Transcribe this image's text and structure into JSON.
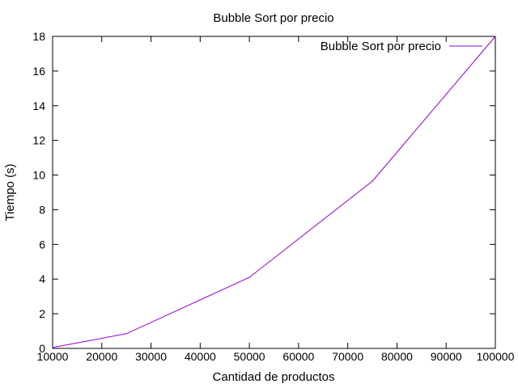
{
  "chart_data": {
    "type": "line",
    "title": "Bubble Sort por precio",
    "xlabel": "Cantidad de productos",
    "ylabel": "Tiempo (s)",
    "xlim": [
      10000,
      100000
    ],
    "ylim": [
      0,
      18
    ],
    "xticks": [
      "10000",
      "20000",
      "30000",
      "40000",
      "50000",
      "60000",
      "70000",
      "80000",
      "90000",
      "100000"
    ],
    "yticks": [
      "0",
      "2",
      "4",
      "6",
      "8",
      "10",
      "12",
      "14",
      "16",
      "18"
    ],
    "grid": false,
    "legend_position": "top-right",
    "series": [
      {
        "name": "Bubble Sort por precio",
        "color": "#9400d3",
        "x": [
          10000,
          25000,
          50000,
          75000,
          100000
        ],
        "y": [
          0.05,
          0.85,
          4.1,
          9.65,
          18.0
        ]
      }
    ]
  }
}
